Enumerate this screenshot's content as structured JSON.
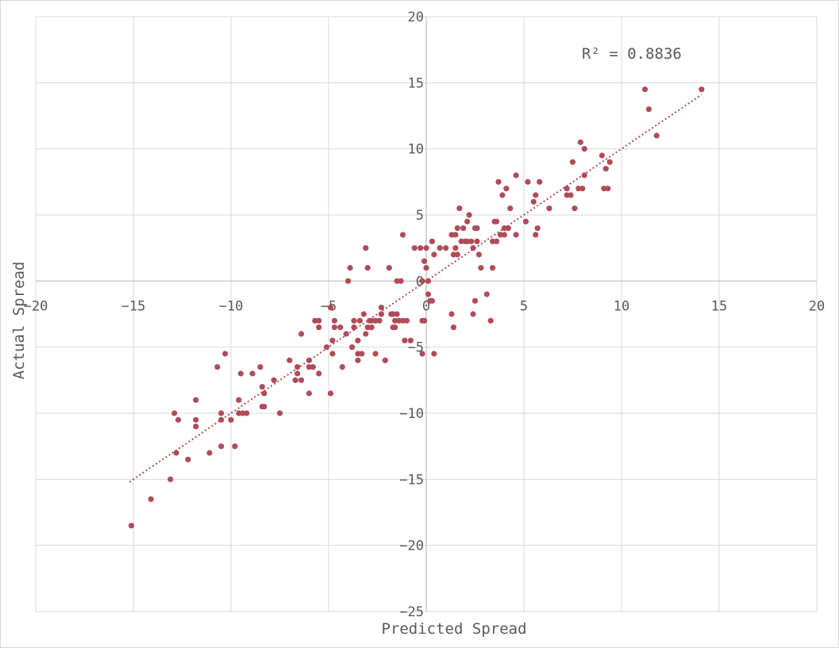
{
  "chart_data": {
    "type": "scatter",
    "title": "",
    "xlabel": "Predicted Spread",
    "ylabel": "Actual Spread",
    "xlim": [
      -20,
      20
    ],
    "ylim": [
      -25,
      20
    ],
    "x_ticks": [
      -20,
      -15,
      -10,
      -5,
      0,
      5,
      10,
      15,
      20
    ],
    "y_ticks": [
      -25,
      -20,
      -15,
      -10,
      -5,
      0,
      5,
      10,
      15,
      20
    ],
    "grid": true,
    "marker_color": "#b04b57",
    "trendline": {
      "type": "linear",
      "style": "dotted",
      "color": "#b04b57",
      "from": [
        -15.2,
        -15.2
      ],
      "to": [
        14.1,
        14.1
      ],
      "r2_label": "R² = 0.8836"
    },
    "points": [
      [
        -15.1,
        -18.5
      ],
      [
        -14.1,
        -16.5
      ],
      [
        -13.1,
        -15
      ],
      [
        -12.8,
        -13
      ],
      [
        -12.2,
        -13.5
      ],
      [
        -12.7,
        -10.5
      ],
      [
        -12.9,
        -10
      ],
      [
        -11.8,
        -10.5
      ],
      [
        -11.8,
        -9
      ],
      [
        -11.8,
        -11
      ],
      [
        -11.1,
        -13
      ],
      [
        -10.5,
        -12.5
      ],
      [
        -10.5,
        -10
      ],
      [
        -10.5,
        -10.5
      ],
      [
        -10.7,
        -6.5
      ],
      [
        -10.3,
        -5.5
      ],
      [
        -10.0,
        -10.5
      ],
      [
        -9.8,
        -12.5
      ],
      [
        -9.6,
        -9
      ],
      [
        -9.5,
        -7
      ],
      [
        -9.6,
        -10
      ],
      [
        -9.4,
        -10
      ],
      [
        -9.2,
        -10
      ],
      [
        -8.9,
        -7
      ],
      [
        -8.5,
        -6.5
      ],
      [
        -8.4,
        -8
      ],
      [
        -8.4,
        -9.5
      ],
      [
        -8.3,
        -9.5
      ],
      [
        -8.3,
        -8.5
      ],
      [
        -7.8,
        -7.5
      ],
      [
        -7.5,
        -10
      ],
      [
        -7.0,
        -6
      ],
      [
        -6.7,
        -7.5
      ],
      [
        -6.6,
        -6.5
      ],
      [
        -6.6,
        -7
      ],
      [
        -6.4,
        -7.5
      ],
      [
        -6.4,
        -4
      ],
      [
        -6.0,
        -6
      ],
      [
        -6.0,
        -6.5
      ],
      [
        -6.0,
        -8.5
      ],
      [
        -5.8,
        -6.5
      ],
      [
        -5.7,
        -3
      ],
      [
        -5.5,
        -7
      ],
      [
        -5.5,
        -3
      ],
      [
        -5.5,
        -3.5
      ],
      [
        -5.1,
        -5
      ],
      [
        -4.9,
        -8.5
      ],
      [
        -4.9,
        -2
      ],
      [
        -4.8,
        -4.5
      ],
      [
        -4.8,
        -5.5
      ],
      [
        -4.7,
        -3.5
      ],
      [
        -4.7,
        -3
      ],
      [
        -4.4,
        -3.5
      ],
      [
        -4.3,
        -6.5
      ],
      [
        -4.1,
        -4
      ],
      [
        -4.0,
        0
      ],
      [
        -3.9,
        1
      ],
      [
        -3.8,
        -5
      ],
      [
        -3.7,
        -3.5
      ],
      [
        -3.7,
        -3
      ],
      [
        -3.5,
        -4.5
      ],
      [
        -3.5,
        -6
      ],
      [
        -3.5,
        -5.5
      ],
      [
        -3.4,
        -3
      ],
      [
        -3.3,
        -5.5
      ],
      [
        -3.2,
        -2.5
      ],
      [
        -3.1,
        2.5
      ],
      [
        -3.1,
        -4
      ],
      [
        -3.0,
        1
      ],
      [
        -3.0,
        -3.5
      ],
      [
        -2.9,
        -3
      ],
      [
        -2.8,
        -3.5
      ],
      [
        -2.8,
        -3
      ],
      [
        -2.6,
        -3
      ],
      [
        -2.6,
        -5.5
      ],
      [
        -2.4,
        -3
      ],
      [
        -2.3,
        -2
      ],
      [
        -2.3,
        -2.5
      ],
      [
        -2.1,
        -6
      ],
      [
        -1.9,
        1
      ],
      [
        -1.8,
        -2.5
      ],
      [
        -1.7,
        -3.5
      ],
      [
        -1.7,
        -2.5
      ],
      [
        -1.6,
        -3
      ],
      [
        -1.6,
        -3.5
      ],
      [
        -1.5,
        -2.5
      ],
      [
        -1.5,
        0
      ],
      [
        -1.4,
        -3
      ],
      [
        -1.3,
        0
      ],
      [
        -1.2,
        -3
      ],
      [
        -1.2,
        3.5
      ],
      [
        -1.1,
        -4.5
      ],
      [
        -1.0,
        -3
      ],
      [
        -0.8,
        -4.5
      ],
      [
        -0.6,
        2.5
      ],
      [
        -0.3,
        2.5
      ],
      [
        -0.2,
        -5.5
      ],
      [
        -0.2,
        -3
      ],
      [
        -0.2,
        0
      ],
      [
        -0.1,
        -3
      ],
      [
        -0.1,
        1.5
      ],
      [
        0,
        1
      ],
      [
        0,
        2.5
      ],
      [
        0.1,
        0
      ],
      [
        0.1,
        -1
      ],
      [
        0.2,
        -1.5
      ],
      [
        0.3,
        -1.5
      ],
      [
        0.3,
        3
      ],
      [
        0.4,
        2
      ],
      [
        0.4,
        -5.5
      ],
      [
        0.7,
        2.5
      ],
      [
        1.0,
        2.5
      ],
      [
        1.3,
        3.5
      ],
      [
        1.3,
        -2.5
      ],
      [
        1.4,
        -3.5
      ],
      [
        1.4,
        2
      ],
      [
        1.5,
        2.5
      ],
      [
        1.5,
        3.5
      ],
      [
        1.6,
        2
      ],
      [
        1.6,
        4
      ],
      [
        1.7,
        5.5
      ],
      [
        1.8,
        3
      ],
      [
        1.9,
        4
      ],
      [
        2.0,
        3
      ],
      [
        2.1,
        4.5
      ],
      [
        2.1,
        3
      ],
      [
        2.2,
        5
      ],
      [
        2.3,
        3
      ],
      [
        2.4,
        2.5
      ],
      [
        2.4,
        -2.5
      ],
      [
        2.5,
        4
      ],
      [
        2.5,
        -1.5
      ],
      [
        2.6,
        4
      ],
      [
        2.6,
        3
      ],
      [
        2.7,
        2
      ],
      [
        2.8,
        1
      ],
      [
        3.1,
        -1
      ],
      [
        3.3,
        -3
      ],
      [
        3.4,
        1
      ],
      [
        3.4,
        3
      ],
      [
        3.5,
        4.5
      ],
      [
        3.6,
        3
      ],
      [
        3.6,
        4.5
      ],
      [
        3.7,
        7.5
      ],
      [
        3.8,
        3.5
      ],
      [
        3.9,
        6.5
      ],
      [
        4.0,
        3.5
      ],
      [
        4.0,
        4
      ],
      [
        4.1,
        7
      ],
      [
        4.2,
        4
      ],
      [
        4.3,
        5.5
      ],
      [
        4.6,
        8
      ],
      [
        4.6,
        3.5
      ],
      [
        5.1,
        4.5
      ],
      [
        5.2,
        7.5
      ],
      [
        5.5,
        6
      ],
      [
        5.6,
        6.5
      ],
      [
        5.6,
        3.5
      ],
      [
        5.7,
        4
      ],
      [
        5.8,
        7.5
      ],
      [
        6.3,
        5.5
      ],
      [
        7.2,
        6.5
      ],
      [
        7.2,
        7
      ],
      [
        7.4,
        6.5
      ],
      [
        7.5,
        9
      ],
      [
        7.6,
        5.5
      ],
      [
        7.8,
        7
      ],
      [
        7.9,
        10.5
      ],
      [
        8.0,
        7
      ],
      [
        8.1,
        10
      ],
      [
        8.1,
        8
      ],
      [
        9.0,
        9.5
      ],
      [
        9.1,
        7
      ],
      [
        9.2,
        8.5
      ],
      [
        9.3,
        7
      ],
      [
        9.4,
        9
      ],
      [
        11.2,
        14.5
      ],
      [
        11.4,
        13
      ],
      [
        11.8,
        11
      ],
      [
        14.1,
        14.5
      ]
    ]
  }
}
